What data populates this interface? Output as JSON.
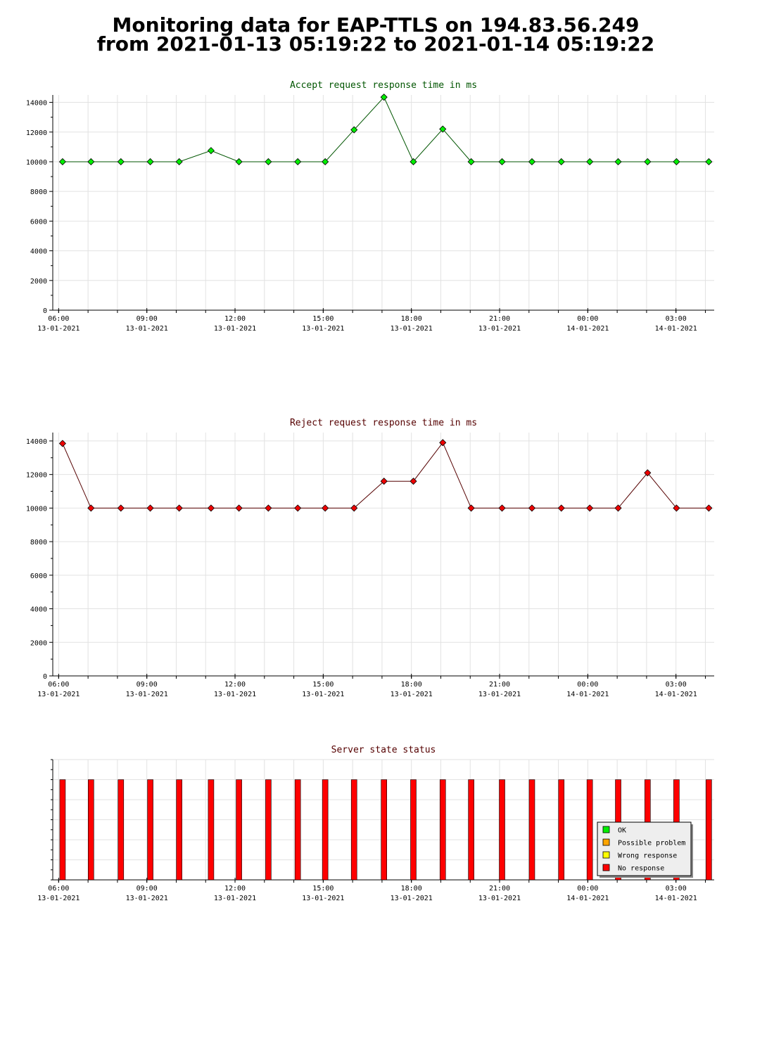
{
  "header": {
    "line1": "Monitoring data for EAP-TTLS on 194.83.56.249",
    "line2": "from 2021-01-13 05:19:22 to 2021-01-14 05:19:22"
  },
  "x_axis_ticks": [
    {
      "time": "06:00",
      "date": "13-01-2021"
    },
    {
      "time": "09:00",
      "date": "13-01-2021"
    },
    {
      "time": "12:00",
      "date": "13-01-2021"
    },
    {
      "time": "15:00",
      "date": "13-01-2021"
    },
    {
      "time": "18:00",
      "date": "13-01-2021"
    },
    {
      "time": "21:00",
      "date": "13-01-2021"
    },
    {
      "time": "00:00",
      "date": "14-01-2021"
    },
    {
      "time": "03:00",
      "date": "14-01-2021"
    }
  ],
  "chart_data": [
    {
      "type": "line",
      "title": "Accept request response time in ms",
      "xlabel": "",
      "ylabel": "",
      "xlim": [
        "2021-01-13 05:48",
        "2021-01-14 04:18"
      ],
      "ylim": [
        0,
        14500
      ],
      "yticks": [
        0,
        2000,
        4000,
        6000,
        8000,
        10000,
        12000,
        14000
      ],
      "grid": true,
      "line_color": "#005500",
      "marker_color": "#00ee00",
      "title_color": "#005500",
      "x": [
        "2021-01-13 06:08",
        "2021-01-13 07:06",
        "2021-01-13 08:07",
        "2021-01-13 09:07",
        "2021-01-13 10:06",
        "2021-01-13 11:11",
        "2021-01-13 12:08",
        "2021-01-13 13:08",
        "2021-01-13 14:08",
        "2021-01-13 15:04",
        "2021-01-13 16:03",
        "2021-01-13 17:04",
        "2021-01-13 18:04",
        "2021-01-13 19:04",
        "2021-01-13 20:02",
        "2021-01-13 21:05",
        "2021-01-13 22:06",
        "2021-01-13 23:06",
        "2021-01-14 00:04",
        "2021-01-14 01:02",
        "2021-01-14 02:02",
        "2021-01-14 03:01",
        "2021-01-14 04:07"
      ],
      "y": [
        10000,
        10000,
        10000,
        10000,
        10000,
        10750,
        10000,
        10000,
        10000,
        10000,
        12150,
        14350,
        10000,
        12200,
        10000,
        10000,
        10000,
        10000,
        10000,
        10000,
        10000,
        10000,
        10000
      ]
    },
    {
      "type": "line",
      "title": "Reject request response time in ms",
      "xlabel": "",
      "ylabel": "",
      "xlim": [
        "2021-01-13 05:48",
        "2021-01-14 04:18"
      ],
      "ylim": [
        0,
        14500
      ],
      "yticks": [
        0,
        2000,
        4000,
        6000,
        8000,
        10000,
        12000,
        14000
      ],
      "grid": true,
      "line_color": "#550000",
      "marker_color": "#ee0000",
      "title_color": "#550000",
      "x": [
        "2021-01-13 06:08",
        "2021-01-13 07:06",
        "2021-01-13 08:07",
        "2021-01-13 09:07",
        "2021-01-13 10:06",
        "2021-01-13 11:11",
        "2021-01-13 12:08",
        "2021-01-13 13:08",
        "2021-01-13 14:08",
        "2021-01-13 15:04",
        "2021-01-13 16:03",
        "2021-01-13 17:04",
        "2021-01-13 18:04",
        "2021-01-13 19:04",
        "2021-01-13 20:02",
        "2021-01-13 21:05",
        "2021-01-13 22:06",
        "2021-01-13 23:06",
        "2021-01-14 00:04",
        "2021-01-14 01:02",
        "2021-01-14 02:02",
        "2021-01-14 03:01",
        "2021-01-14 04:07"
      ],
      "y": [
        13850,
        10000,
        10000,
        10000,
        10000,
        10000,
        10000,
        10000,
        10000,
        10000,
        10000,
        11600,
        11600,
        13900,
        10000,
        10000,
        10000,
        10000,
        10000,
        10000,
        12100,
        10000,
        10000
      ]
    },
    {
      "type": "bar",
      "title": "Server state status",
      "xlabel": "",
      "ylabel": "",
      "xlim": [
        "2021-01-13 05:48",
        "2021-01-14 04:18"
      ],
      "ylim": [
        0,
        6
      ],
      "grid": true,
      "title_color": "#550000",
      "x": [
        "2021-01-13 06:08",
        "2021-01-13 07:06",
        "2021-01-13 08:07",
        "2021-01-13 09:07",
        "2021-01-13 10:06",
        "2021-01-13 11:11",
        "2021-01-13 12:08",
        "2021-01-13 13:08",
        "2021-01-13 14:08",
        "2021-01-13 15:04",
        "2021-01-13 16:03",
        "2021-01-13 17:04",
        "2021-01-13 18:04",
        "2021-01-13 19:04",
        "2021-01-13 20:02",
        "2021-01-13 21:05",
        "2021-01-13 22:06",
        "2021-01-13 23:06",
        "2021-01-14 00:04",
        "2021-01-14 01:02",
        "2021-01-14 02:02",
        "2021-01-14 03:01",
        "2021-01-14 04:07"
      ],
      "values": [
        5,
        5,
        5,
        5,
        5,
        5,
        5,
        5,
        5,
        5,
        5,
        5,
        5,
        5,
        5,
        5,
        5,
        5,
        5,
        5,
        5,
        5,
        5
      ],
      "status": [
        "No response",
        "No response",
        "No response",
        "No response",
        "No response",
        "No response",
        "No response",
        "No response",
        "No response",
        "No response",
        "No response",
        "No response",
        "No response",
        "No response",
        "No response",
        "No response",
        "No response",
        "No response",
        "No response",
        "No response",
        "No response",
        "No response",
        "No response"
      ],
      "legend_position": "lower-right",
      "legend": [
        {
          "name": "OK",
          "color": "#00ee00"
        },
        {
          "name": "Possible problem",
          "color": "#ffa500"
        },
        {
          "name": "Wrong response",
          "color": "#ffff00"
        },
        {
          "name": "No response",
          "color": "#ff0000"
        }
      ]
    }
  ]
}
